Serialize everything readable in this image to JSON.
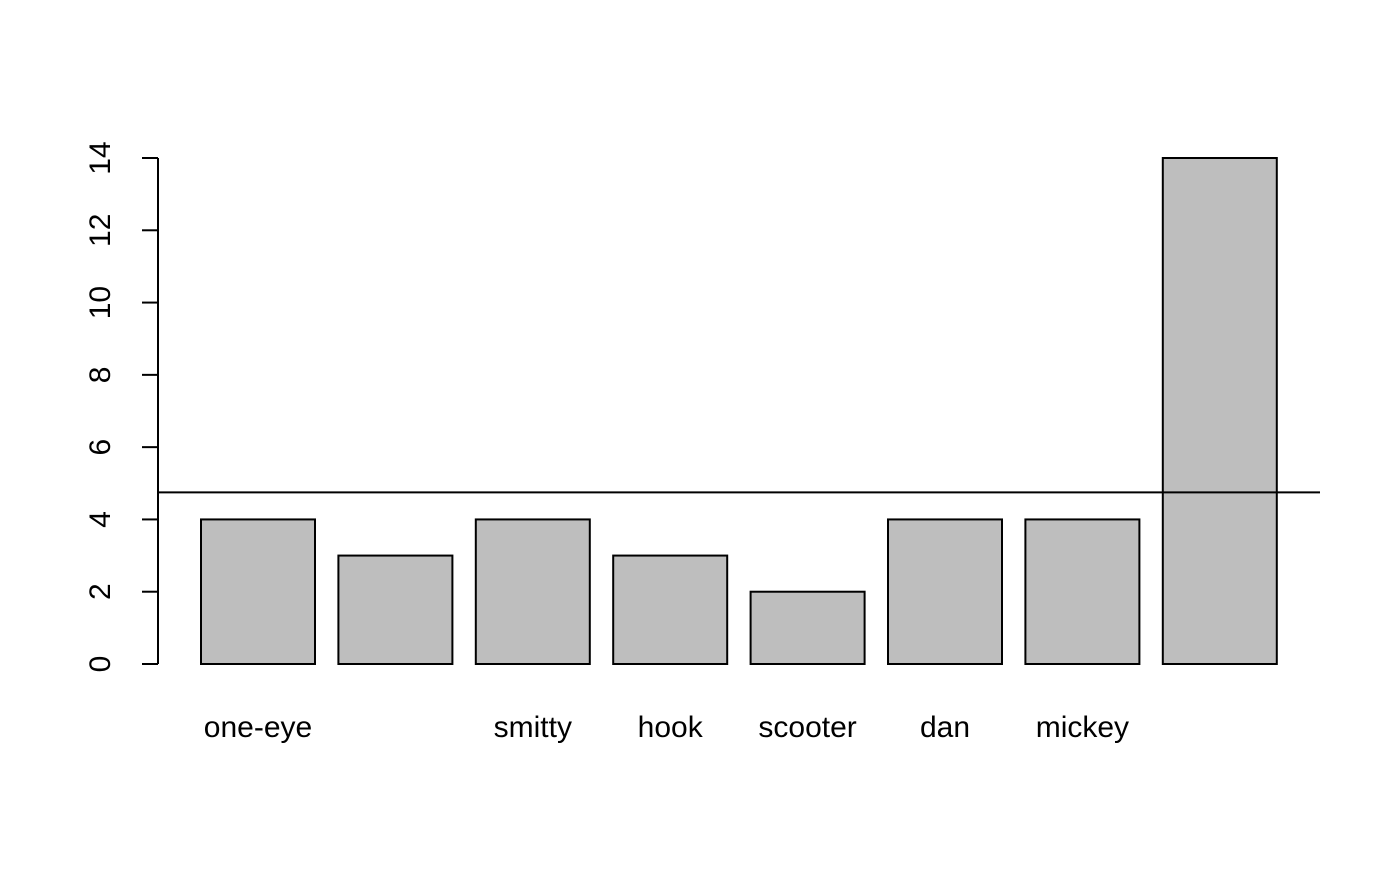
{
  "chart_data": {
    "type": "bar",
    "categories": [
      "one-eye",
      "",
      "smitty",
      "hook",
      "scooter",
      "dan",
      "mickey",
      ""
    ],
    "values": [
      4,
      3,
      4,
      3,
      2,
      4,
      4,
      14
    ],
    "ylim": [
      0,
      14
    ],
    "yticks": [
      0,
      2,
      4,
      6,
      8,
      10,
      12,
      14
    ],
    "reference_line": 4.75,
    "bar_fill": "#bebebe",
    "bar_stroke": "#000000",
    "grid": false,
    "title": "",
    "xlabel": "",
    "ylabel": ""
  }
}
